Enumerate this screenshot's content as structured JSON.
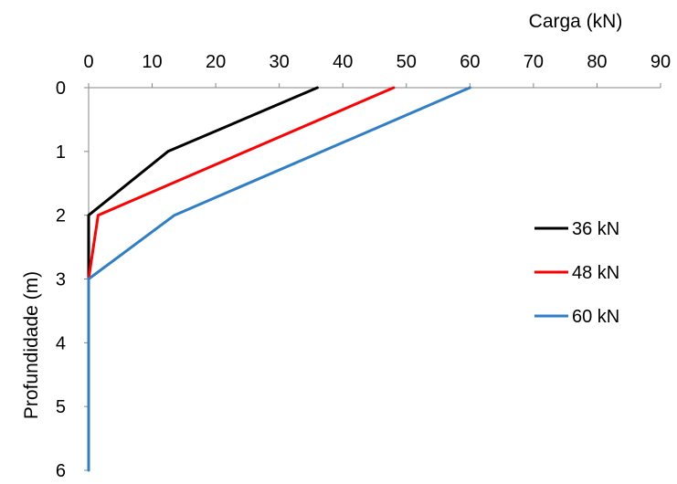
{
  "chart_data": {
    "type": "line",
    "xlabel": "Carga (kN)",
    "ylabel": "Profundidade (m)",
    "xlim": [
      0,
      90
    ],
    "ylim": [
      0,
      6
    ],
    "x_axis_position": "top",
    "y_axis_inverted": true,
    "grid": false,
    "legend_position": "right",
    "x_ticks": [
      "0",
      "10",
      "20",
      "30",
      "40",
      "50",
      "60",
      "70",
      "80",
      "90"
    ],
    "y_ticks": [
      "0",
      "1",
      "2",
      "3",
      "4",
      "5",
      "6"
    ],
    "series": [
      {
        "name": "36 kN",
        "color": "#000000",
        "x": [
          36,
          12.5,
          0,
          0
        ],
        "y": [
          0,
          1,
          2,
          3
        ]
      },
      {
        "name": "48 kN",
        "color": "#ff0000",
        "x": [
          48,
          1.5,
          0,
          0
        ],
        "y": [
          0,
          2,
          3,
          3
        ]
      },
      {
        "name": "60 kN",
        "color": "#2e7fc8",
        "x": [
          60,
          13.5,
          0,
          0
        ],
        "y": [
          0,
          2,
          3,
          6
        ]
      }
    ]
  }
}
